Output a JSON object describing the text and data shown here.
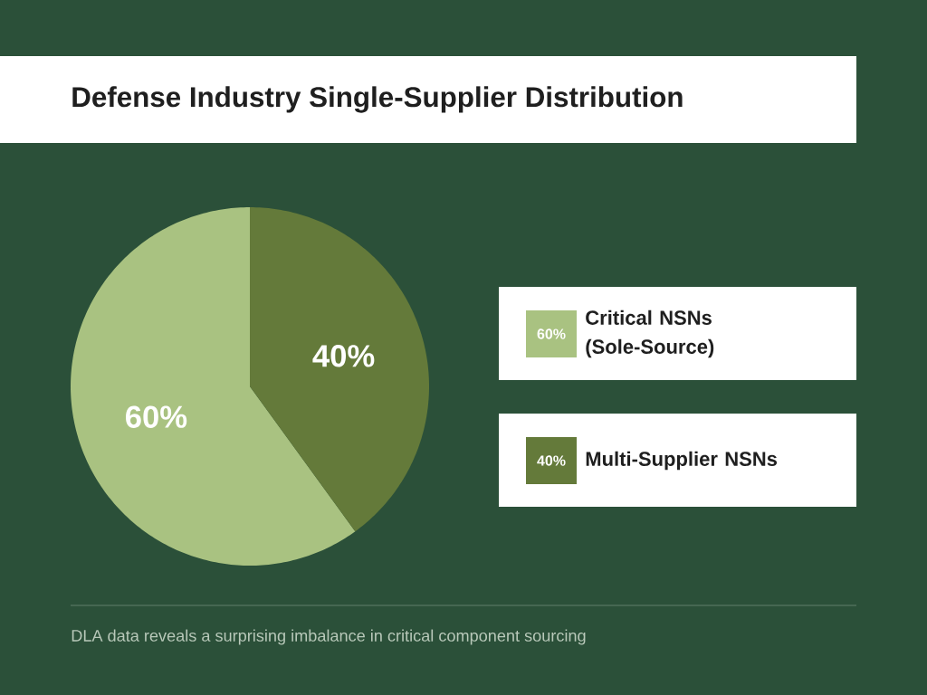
{
  "chart_data": {
    "type": "pie",
    "title": "Defense Industry Single-Supplier Distribution",
    "categories": [
      "Critical NSNs (Sole-Source)",
      "Multi-Supplier NSNs"
    ],
    "values": [
      60,
      40
    ],
    "value_labels": [
      "60%",
      "40%"
    ],
    "colors": [
      "#a9c281",
      "#647a3a"
    ],
    "legend": "right",
    "annotations": [
      "DLA data reveals a surprising imbalance in critical component sourcing"
    ]
  }
}
